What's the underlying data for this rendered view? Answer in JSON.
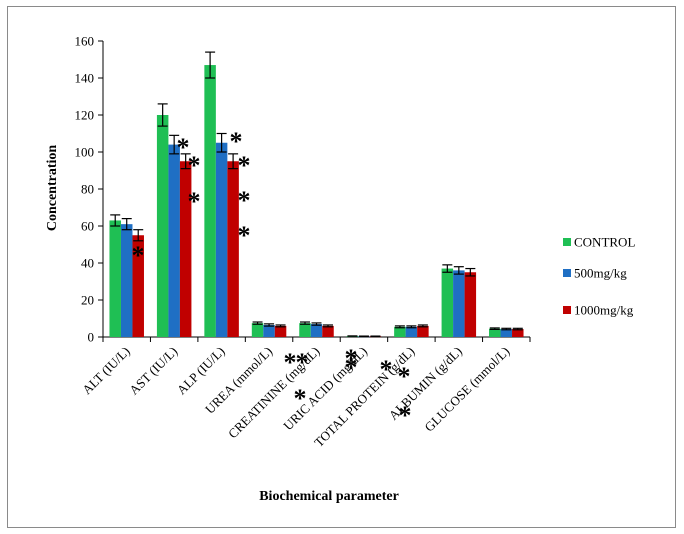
{
  "chart_data": {
    "type": "bar",
    "xlabel": "Biochemical parameter",
    "ylabel": "Concentration",
    "ylim": [
      0,
      160
    ],
    "yticks": [
      0,
      20,
      40,
      60,
      80,
      100,
      120,
      140,
      160
    ],
    "grid": false,
    "legend_position": "right",
    "categories": [
      "ALT (IU/L)",
      "AST (IU/L)",
      "ALP (IU/L)",
      "UREA (mmol/L)",
      "CREATININE (mg/dL)",
      "URIC ACID (mg/dL)",
      "TOTAL PROTEIN (g/dL)",
      "ALBUMIN (g/dL)",
      "GLUCOSE (mmol/L)"
    ],
    "series": [
      {
        "name": "CONTROL",
        "color": "#1fbf54",
        "values": [
          63,
          120,
          147,
          7.5,
          7.5,
          0.5,
          5.5,
          37,
          4.5
        ],
        "errors": [
          3,
          6,
          7,
          0.6,
          0.6,
          0.1,
          0.5,
          2,
          0.4
        ]
      },
      {
        "name": "500mg/kg",
        "color": "#1f6fc4",
        "values": [
          61,
          104,
          105,
          6.5,
          7,
          0.4,
          5.5,
          36,
          4.3
        ],
        "errors": [
          3,
          5,
          5,
          0.6,
          0.6,
          0.1,
          0.5,
          2,
          0.4
        ]
      },
      {
        "name": "1000mg/kg",
        "color": "#c00000",
        "values": [
          55,
          95,
          95,
          6,
          6,
          0.4,
          6,
          35,
          4.3
        ],
        "errors": [
          3,
          4,
          4,
          0.5,
          0.5,
          0.1,
          0.5,
          2,
          0.4
        ]
      }
    ],
    "significance_marker": "*"
  }
}
